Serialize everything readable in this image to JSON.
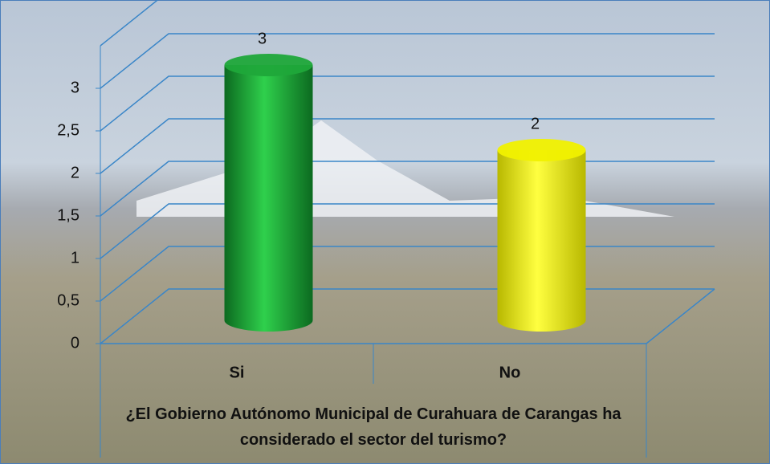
{
  "chart_data": {
    "type": "bar3d",
    "x_label": "¿El Gobierno Autónomo Municipal de Curahuara de Carangas ha considerado el sector del turismo?",
    "categories": [
      "Si",
      "No"
    ],
    "series": [
      {
        "colors": [
          "#1fa83a",
          "#f2f200"
        ],
        "values": [
          3,
          2
        ]
      }
    ],
    "ylim": [
      0,
      3.5
    ],
    "yticks": [
      0,
      {
        "value": 0.5,
        "label": "0,5"
      },
      1,
      {
        "value": 1.5,
        "label": "1,5"
      },
      2,
      {
        "value": 2.5,
        "label": "2,5"
      },
      3
    ],
    "grid": true
  }
}
